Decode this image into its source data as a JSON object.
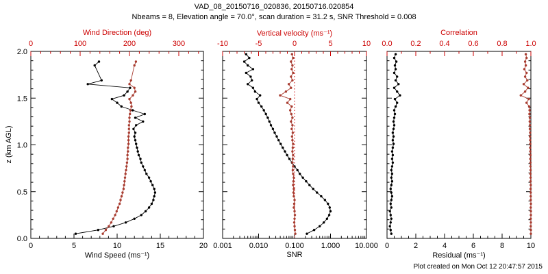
{
  "header": {
    "title": "VAD_08_20150716_020836, 20150716.020854",
    "subtitle": "Nbeams = 8, Elevation angle = 70.0°, scan duration = 31.2 s, SNR Threshold = 0.008"
  },
  "footer": "Plot created on Mon Oct 12 20:47:57 2015",
  "colors": {
    "black": "#000000",
    "axis_red": "#cc0000",
    "marker_red": "#a83c30"
  },
  "chart_data": [
    {
      "name": "wind",
      "type": "scatter",
      "show_y_labels": true,
      "y_axis": {
        "label": "z (km AGL)",
        "lim": [
          0,
          2
        ],
        "ticks": [
          0,
          0.5,
          1,
          1.5,
          2
        ],
        "tick_labels": [
          "0.0",
          "0.5",
          "1.0",
          "1.5",
          "2.0"
        ],
        "minor": 4
      },
      "bottom_axis": {
        "label": "Wind Speed (ms⁻¹)",
        "scale": "linear",
        "lim": [
          0,
          20
        ],
        "ticks": [
          0,
          5,
          10,
          15,
          20
        ],
        "tick_labels": [
          "0",
          "5",
          "10",
          "15",
          "20"
        ],
        "minor": 4,
        "color": "black"
      },
      "top_axis": {
        "label": "Wind Direction (deg)",
        "scale": "linear",
        "lim": [
          0,
          350
        ],
        "ticks": [
          0,
          100,
          200,
          300
        ],
        "tick_labels": [
          "0",
          "100",
          "200",
          "300"
        ],
        "minor": 4,
        "color": "axis_red"
      },
      "series": [
        {
          "name": "wind-speed",
          "axis": "bottom",
          "color": "black",
          "z": [
            0.05,
            0.09,
            0.13,
            0.17,
            0.21,
            0.25,
            0.29,
            0.33,
            0.37,
            0.41,
            0.45,
            0.49,
            0.53,
            0.57,
            0.61,
            0.65,
            0.69,
            0.73,
            0.77,
            0.81,
            0.85,
            0.89,
            0.93,
            0.97,
            1.01,
            1.05,
            1.09,
            1.13,
            1.17,
            1.21,
            1.25,
            1.29,
            1.33,
            1.37,
            1.41,
            1.45,
            1.49,
            1.53,
            1.57,
            1.61,
            1.65,
            1.69,
            1.85,
            1.89
          ],
          "v": [
            5.2,
            7.8,
            9.6,
            11.0,
            12.0,
            12.8,
            13.3,
            13.7,
            14.0,
            14.2,
            14.3,
            14.4,
            14.3,
            14.1,
            13.9,
            13.7,
            13.4,
            13.2,
            13.0,
            12.8,
            12.7,
            12.5,
            12.4,
            12.3,
            12.2,
            12.1,
            12.0,
            12.1,
            11.9,
            12.2,
            13.0,
            12.1,
            13.2,
            11.8,
            10.5,
            10.0,
            9.4,
            10.8,
            11.2,
            11.5,
            6.6,
            8.2,
            7.4,
            7.9
          ]
        },
        {
          "name": "wind-direction",
          "axis": "top",
          "color": "marker_red",
          "z": [
            0.05,
            0.09,
            0.13,
            0.17,
            0.21,
            0.25,
            0.29,
            0.33,
            0.37,
            0.41,
            0.45,
            0.49,
            0.53,
            0.57,
            0.61,
            0.65,
            0.69,
            0.73,
            0.77,
            0.81,
            0.85,
            0.89,
            0.93,
            0.97,
            1.01,
            1.05,
            1.09,
            1.13,
            1.17,
            1.21,
            1.25,
            1.29,
            1.33,
            1.37,
            1.41,
            1.45,
            1.49,
            1.53,
            1.57,
            1.61,
            1.65,
            1.69,
            1.85,
            1.89
          ],
          "v": [
            146,
            152,
            158,
            163,
            167,
            171,
            174,
            177,
            180,
            182,
            184,
            186,
            188,
            189,
            190,
            191,
            192,
            193,
            194,
            195,
            196,
            196,
            197,
            197,
            198,
            198,
            198,
            199,
            199,
            199,
            200,
            200,
            201,
            202,
            204,
            203,
            200,
            207,
            212,
            210,
            200,
            203,
            210,
            213
          ]
        }
      ]
    },
    {
      "name": "snr",
      "type": "scatter",
      "show_y_labels": false,
      "ref_line": {
        "axis": "top",
        "value": 0
      },
      "y_axis": {
        "label": "",
        "lim": [
          0,
          2
        ],
        "ticks": [
          0,
          0.5,
          1,
          1.5,
          2
        ],
        "tick_labels": [
          "0.0",
          "0.5",
          "1.0",
          "1.5",
          "2.0"
        ],
        "minor": 4
      },
      "bottom_axis": {
        "label": "SNR",
        "scale": "log",
        "lim": [
          0.001,
          10
        ],
        "ticks": [
          0.001,
          0.01,
          0.1,
          1,
          10
        ],
        "tick_labels": [
          "0.001",
          "0.010",
          "0.100",
          "1.000",
          "10.000"
        ],
        "color": "black"
      },
      "top_axis": {
        "label": "Vertical velocity (ms⁻¹)",
        "scale": "linear",
        "lim": [
          -10,
          10
        ],
        "ticks": [
          -10,
          -5,
          0,
          5,
          10
        ],
        "tick_labels": [
          "-10",
          "-5",
          "0",
          "5",
          "10"
        ],
        "minor": 4,
        "color": "axis_red"
      },
      "series": [
        {
          "name": "snr",
          "axis": "bottom",
          "color": "black",
          "z": [
            0.05,
            0.09,
            0.13,
            0.17,
            0.21,
            0.25,
            0.29,
            0.33,
            0.37,
            0.41,
            0.45,
            0.49,
            0.53,
            0.57,
            0.61,
            0.65,
            0.69,
            0.73,
            0.77,
            0.81,
            0.85,
            0.89,
            0.93,
            0.97,
            1.01,
            1.05,
            1.09,
            1.13,
            1.17,
            1.21,
            1.25,
            1.29,
            1.33,
            1.37,
            1.41,
            1.45,
            1.49,
            1.53,
            1.57,
            1.61,
            1.65,
            1.69,
            1.73,
            1.77,
            1.81,
            1.85,
            1.89,
            1.93,
            1.97
          ],
          "v": [
            0.22,
            0.35,
            0.5,
            0.65,
            0.8,
            0.92,
            1.0,
            0.95,
            0.85,
            0.7,
            0.55,
            0.42,
            0.33,
            0.26,
            0.21,
            0.17,
            0.14,
            0.12,
            0.1,
            0.085,
            0.072,
            0.062,
            0.054,
            0.047,
            0.041,
            0.036,
            0.032,
            0.028,
            0.025,
            0.022,
            0.02,
            0.018,
            0.016,
            0.014,
            0.012,
            0.01,
            0.009,
            0.011,
            0.008,
            0.007,
            0.005,
            0.0065,
            0.006,
            0.0045,
            0.007,
            0.005,
            0.004,
            0.0055,
            0.0045
          ]
        },
        {
          "name": "vertical-velocity",
          "axis": "top",
          "color": "marker_red",
          "z": [
            0.05,
            0.09,
            0.13,
            0.17,
            0.21,
            0.25,
            0.29,
            0.33,
            0.37,
            0.41,
            0.45,
            0.49,
            0.53,
            0.57,
            0.61,
            0.65,
            0.69,
            0.73,
            0.77,
            0.81,
            0.85,
            0.89,
            0.93,
            0.97,
            1.01,
            1.05,
            1.09,
            1.13,
            1.17,
            1.21,
            1.25,
            1.29,
            1.33,
            1.37,
            1.41,
            1.45,
            1.49,
            1.53,
            1.57,
            1.61,
            1.65,
            1.69,
            1.73,
            1.77,
            1.81,
            1.85,
            1.89,
            1.93,
            1.97
          ],
          "v": [
            0.1,
            0.05,
            0.0,
            -0.05,
            0.0,
            0.05,
            0.0,
            -0.1,
            -0.05,
            0.0,
            -0.1,
            -0.15,
            -0.1,
            -0.2,
            -0.15,
            -0.1,
            -0.2,
            -0.25,
            -0.2,
            -0.3,
            -0.25,
            -0.2,
            -0.3,
            -0.25,
            -0.2,
            -0.3,
            -0.35,
            -0.25,
            -0.4,
            -0.3,
            -0.5,
            -0.3,
            -0.45,
            -0.6,
            -0.4,
            -1.0,
            -0.6,
            -2.0,
            -1.2,
            -0.5,
            -0.8,
            -0.3,
            -0.5,
            -0.2,
            -0.4,
            -0.3,
            -0.5,
            -0.2,
            -0.35
          ]
        }
      ]
    },
    {
      "name": "residual",
      "type": "scatter",
      "show_y_labels": false,
      "y_axis": {
        "label": "",
        "lim": [
          0,
          2
        ],
        "ticks": [
          0,
          0.5,
          1,
          1.5,
          2
        ],
        "tick_labels": [
          "0.0",
          "0.5",
          "1.0",
          "1.5",
          "2.0"
        ],
        "minor": 4
      },
      "bottom_axis": {
        "label": "Residual (ms⁻¹)",
        "scale": "linear",
        "lim": [
          0,
          10
        ],
        "ticks": [
          0,
          2,
          4,
          6,
          8,
          10
        ],
        "tick_labels": [
          "0",
          "2",
          "4",
          "6",
          "8",
          "10"
        ],
        "minor": 3,
        "color": "black"
      },
      "top_axis": {
        "label": "Correlation",
        "scale": "linear",
        "lim": [
          0,
          1
        ],
        "ticks": [
          0,
          0.2,
          0.4,
          0.6,
          0.8,
          1
        ],
        "tick_labels": [
          "0.0",
          "0.2",
          "0.4",
          "0.6",
          "0.8",
          "1.0"
        ],
        "minor": 1,
        "color": "axis_red"
      },
      "series": [
        {
          "name": "residual",
          "axis": "bottom",
          "color": "black",
          "z": [
            0.05,
            0.09,
            0.13,
            0.17,
            0.21,
            0.25,
            0.29,
            0.33,
            0.37,
            0.41,
            0.45,
            0.49,
            0.53,
            0.57,
            0.61,
            0.65,
            0.69,
            0.73,
            0.77,
            0.81,
            0.85,
            0.89,
            0.93,
            0.97,
            1.01,
            1.05,
            1.09,
            1.13,
            1.17,
            1.21,
            1.25,
            1.29,
            1.33,
            1.37,
            1.41,
            1.45,
            1.49,
            1.53,
            1.57,
            1.61,
            1.65,
            1.69,
            1.73,
            1.77,
            1.81,
            1.85,
            1.89,
            1.93,
            1.97
          ],
          "v": [
            0.3,
            0.25,
            0.2,
            0.25,
            0.3,
            0.25,
            0.2,
            0.3,
            0.25,
            0.3,
            0.35,
            0.3,
            0.25,
            0.3,
            0.35,
            0.3,
            0.35,
            0.3,
            0.35,
            0.4,
            0.35,
            0.4,
            0.35,
            0.4,
            0.45,
            0.4,
            0.45,
            0.4,
            0.45,
            0.5,
            0.45,
            0.5,
            0.55,
            0.5,
            0.6,
            0.7,
            0.55,
            0.9,
            0.7,
            0.5,
            0.8,
            0.6,
            0.7,
            0.5,
            0.6,
            0.55,
            0.65,
            0.5,
            0.6
          ]
        },
        {
          "name": "correlation",
          "axis": "top",
          "color": "marker_red",
          "z": [
            0.05,
            0.09,
            0.13,
            0.17,
            0.21,
            0.25,
            0.29,
            0.33,
            0.37,
            0.41,
            0.45,
            0.49,
            0.53,
            0.57,
            0.61,
            0.65,
            0.69,
            0.73,
            0.77,
            0.81,
            0.85,
            0.89,
            0.93,
            0.97,
            1.01,
            1.05,
            1.09,
            1.13,
            1.17,
            1.21,
            1.25,
            1.29,
            1.33,
            1.37,
            1.41,
            1.45,
            1.49,
            1.53,
            1.57,
            1.61,
            1.65,
            1.69,
            1.73,
            1.77,
            1.81,
            1.85,
            1.89,
            1.93,
            1.97
          ],
          "v": [
            1.0,
            1.0,
            0.999,
            1.0,
            0.999,
            1.0,
            1.0,
            0.999,
            1.0,
            0.999,
            0.999,
            0.999,
            0.998,
            0.999,
            0.998,
            0.998,
            0.997,
            0.998,
            0.997,
            0.997,
            0.996,
            0.997,
            0.996,
            0.995,
            0.996,
            0.995,
            0.994,
            0.995,
            0.993,
            0.994,
            0.992,
            0.993,
            0.99,
            0.991,
            0.988,
            0.97,
            0.985,
            0.93,
            0.96,
            0.98,
            0.95,
            0.975,
            0.96,
            0.97,
            0.955,
            0.965,
            0.96,
            0.97,
            0.965
          ]
        }
      ]
    }
  ]
}
